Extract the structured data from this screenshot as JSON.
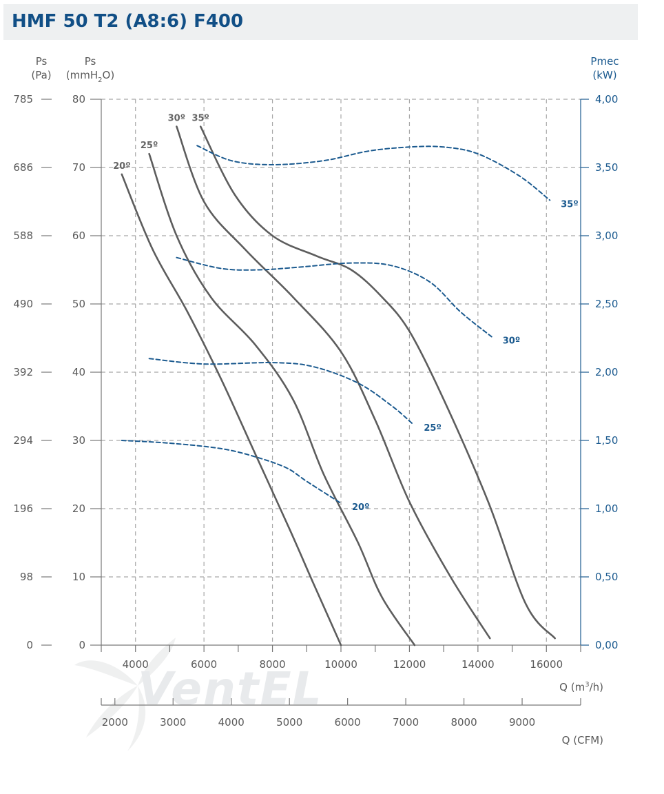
{
  "header": {
    "title": "HMF 50 T2 (A8:6) F400"
  },
  "axes": {
    "left_pa": {
      "label_top": "Ps",
      "label_unit": "(Pa)",
      "ticks": [
        "785",
        "686",
        "588",
        "490",
        "392",
        "294",
        "196",
        "98",
        "0"
      ]
    },
    "left_mm": {
      "label_top": "Ps",
      "label_unit_prefix": "(mmH",
      "label_unit_sub": "2",
      "label_unit_suffix": "O)",
      "ticks": [
        "80",
        "70",
        "60",
        "50",
        "40",
        "30",
        "20",
        "10",
        "0"
      ]
    },
    "right_kw": {
      "label_top": "Pmec",
      "label_unit": "(kW)",
      "ticks": [
        "4,00",
        "3,50",
        "3,00",
        "2,50",
        "2,00",
        "1,50",
        "1,00",
        "0,50",
        "0,00"
      ]
    },
    "x_m3h": {
      "label_prefix": "Q (m",
      "label_sup": "3",
      "label_suffix": "/h)",
      "ticks": [
        "4000",
        "6000",
        "8000",
        "10000",
        "12000",
        "14000",
        "16000"
      ]
    },
    "x_cfm": {
      "label": "Q (CFM)",
      "ticks": [
        "2000",
        "3000",
        "4000",
        "5000",
        "6000",
        "7000",
        "8000",
        "9000"
      ]
    }
  },
  "watermark": {
    "text": "VentEL"
  },
  "colors": {
    "title": "#114f86",
    "pressure_curve": "#5d5d5d",
    "power_curve": "#1b5a8f",
    "grid": "#a8a8a8",
    "header_bg": "#eef0f1"
  },
  "chart_data": {
    "type": "line",
    "title": "HMF 50 T2 (A8:6) F400",
    "xlabel": "Q (m3/h)",
    "x_secondary_label": "Q (CFM)",
    "ylabel": "Ps (mmH2O)",
    "ylabel_secondary": "Ps (Pa)",
    "y2label": "Pmec (kW)",
    "xlim": [
      3000,
      17000
    ],
    "ylim": [
      0,
      80
    ],
    "y2lim": [
      0,
      4
    ],
    "grid": true,
    "series": [
      {
        "name": "20°",
        "axis": "pressure",
        "label_text": "20º",
        "x": [
          3600,
          4500,
          5500,
          6500,
          7500,
          8500,
          9200,
          10000
        ],
        "y": [
          69,
          58,
          49,
          39,
          28,
          17,
          9,
          0
        ]
      },
      {
        "name": "25°",
        "axis": "pressure",
        "label_text": "25º",
        "x": [
          4400,
          5200,
          6200,
          7500,
          8600,
          9500,
          10500,
          11200,
          12150
        ],
        "y": [
          72,
          60,
          51,
          44,
          36,
          25,
          15,
          7,
          0
        ]
      },
      {
        "name": "30°",
        "axis": "pressure",
        "label_text": "30º",
        "x": [
          5200,
          6000,
          7200,
          8600,
          10000,
          11000,
          12000,
          13200,
          14350
        ],
        "y": [
          76,
          65,
          58,
          51,
          43,
          33,
          21,
          10,
          1
        ]
      },
      {
        "name": "35°",
        "axis": "pressure",
        "label_text": "35º",
        "x": [
          5900,
          6900,
          8000,
          9300,
          10300,
          11200,
          12000,
          13000,
          14300,
          15400,
          16250
        ],
        "y": [
          76,
          66,
          60,
          57,
          55,
          51,
          46,
          36,
          21,
          6,
          1
        ]
      },
      {
        "name": "20°",
        "axis": "power",
        "label_text": "20º",
        "x": [
          3600,
          5000,
          6500,
          7500,
          8400,
          9000,
          10000
        ],
        "y": [
          1.5,
          1.48,
          1.44,
          1.38,
          1.3,
          1.2,
          1.04
        ]
      },
      {
        "name": "25°",
        "axis": "power",
        "label_text": "25º",
        "x": [
          4400,
          6000,
          8000,
          9200,
          10500,
          11500,
          12100
        ],
        "y": [
          2.1,
          2.06,
          2.07,
          2.04,
          1.92,
          1.75,
          1.62
        ]
      },
      {
        "name": "30°",
        "axis": "power",
        "label_text": "30º",
        "x": [
          5200,
          6500,
          7600,
          8800,
          10300,
          11500,
          12600,
          13500,
          14400
        ],
        "y": [
          2.84,
          2.76,
          2.75,
          2.77,
          2.8,
          2.78,
          2.66,
          2.44,
          2.26
        ]
      },
      {
        "name": "35°",
        "axis": "power",
        "label_text": "35º",
        "x": [
          5800,
          6800,
          8000,
          9500,
          10800,
          12000,
          13000,
          14000,
          15200,
          16100
        ],
        "y": [
          3.66,
          3.55,
          3.52,
          3.55,
          3.62,
          3.65,
          3.65,
          3.6,
          3.44,
          3.26
        ]
      }
    ]
  }
}
